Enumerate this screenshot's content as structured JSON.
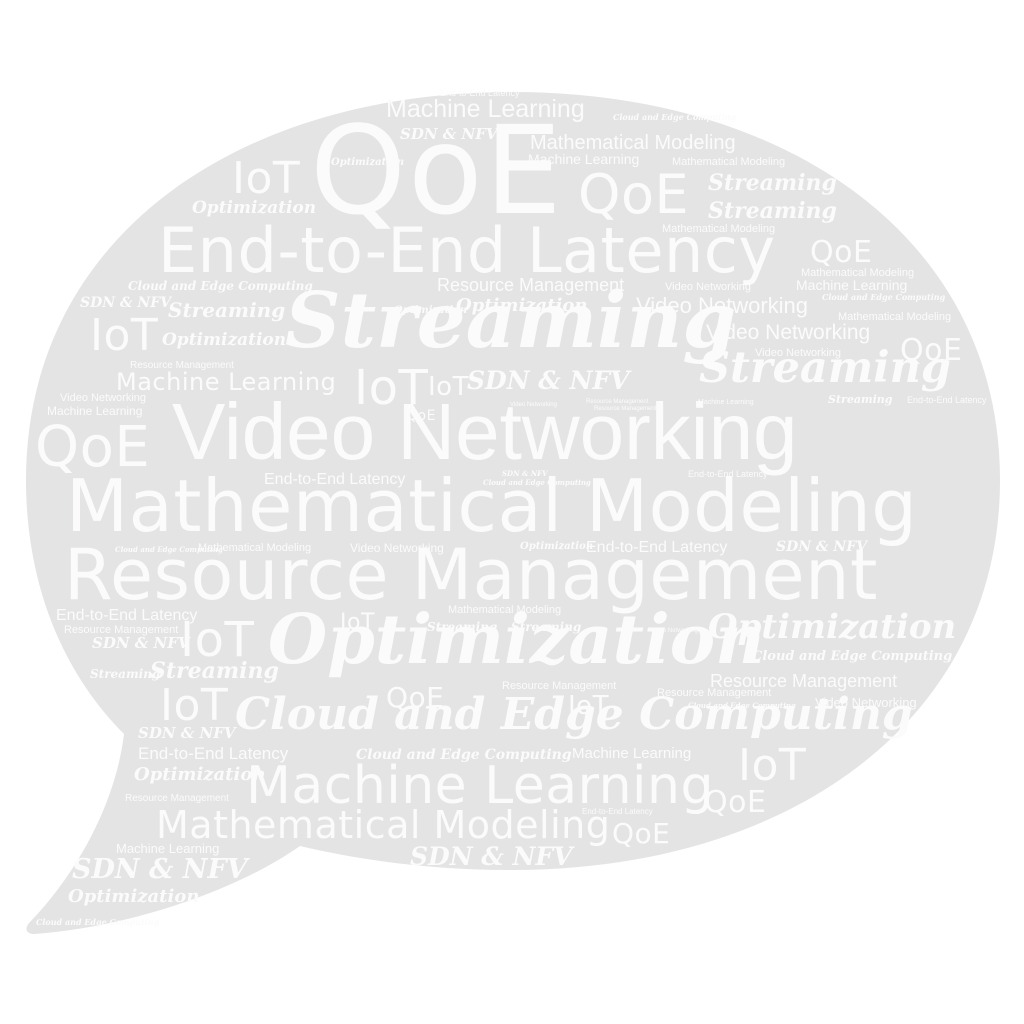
{
  "colors": {
    "bubble": "#e4e4e4",
    "word": "#fcfbfb",
    "background": "#ffffff"
  },
  "words": {
    "qoe_big": "QoE",
    "end_to_end_latency_big": "End-to-End Latency",
    "streaming_big": "Streaming",
    "video_networking_big": "Video Networking",
    "mathematical_modeling_big": "Mathematical Modeling",
    "resource_management_big": "Resource Management",
    "optimization_big": "Optimization",
    "cloud_edge_big": "Cloud and Edge Computing",
    "machine_learning_big": "Machine Learning",
    "mathematical_modeling_mid": "Mathematical Modeling",
    "sdn_nfv_mid": "SDN & NFV",
    "machine_learning_top": "Machine Learning",
    "end_to_end_latency_tiny_top": "End-to-End Latency",
    "cloud_edge_tiny_top": "Cloud and Edge Computing",
    "sdn_nfv_top": "SDN & NFV",
    "mathematical_modeling_top": "Mathematical Modeling",
    "machine_learning_top2": "Machine Learning",
    "mathematical_modeling_top3": "Mathematical Modeling",
    "iot_top": "IoT",
    "optimization_tiny_top": "Optimization",
    "qoe_top_mid": "QoE",
    "streaming_top1": "Streaming",
    "streaming_top2": "Streaming",
    "optimization_top_left": "Optimization",
    "mathematical_modeling_top4": "Mathematical Modeling",
    "qoe_right1": "QoE",
    "mathematical_modeling_right1": "Mathematical Modeling",
    "cloud_edge_left1": "Cloud and Edge Computing",
    "resource_management_mid1": "Resource Management",
    "video_networking_small1": "Video Networking",
    "machine_learning_right1": "Machine Learning",
    "cloud_edge_right_tiny1": "Cloud and Edge Computing",
    "sdn_nfv_left1": "SDN & NFV",
    "streaming_left1": "Streaming",
    "optimization_tiny_mid": "Optimization",
    "optimization_mid1": "Optimization",
    "video_networking_mid1": "Video Networking",
    "mathematical_modeling_right2": "Mathematical Modeling",
    "iot_left1": "IoT",
    "optimization_left2": "Optimization",
    "video_networking_mid2": "Video Networking",
    "qoe_right2": "QoE",
    "resource_management_tiny1": "Resource Management",
    "video_networking_tiny1": "Video Networking",
    "machine_learning_left1": "Machine Learning",
    "iot_mid1": "IoT",
    "iot_mid2": "IoT",
    "sdn_nfv_mid2": "SDN & NFV",
    "streaming_right1": "Streaming",
    "video_networking_left2": "Video Networking",
    "machine_learning_left2": "Machine Learning",
    "qoe_small1": "QoE",
    "video_networking_micro1": "Video Networking",
    "resource_management_micro1": "Resource Management",
    "resource_management_micro2": "Resource Management",
    "machine_learning_micro1": "Machine Learning",
    "streaming_micro1": "Streaming",
    "end_to_end_latency_micro1": "End-to-End Latency",
    "qoe_left_big": "QoE",
    "end_to_end_latency_small1": "End-to-End Latency",
    "sdn_nfv_micro1": "SDN & NFV",
    "cloud_edge_micro1": "Cloud and Edge Computing",
    "end_to_end_latency_micro2": "End-to-End Latency",
    "cloud_edge_micro2": "Cloud and Edge Computing",
    "mathematical_modeling_small2": "Mathematical Modeling",
    "video_networking_small3": "Video Networking",
    "optimization_micro2": "Optimization",
    "end_to_end_latency_small2": "End-to-End Latency",
    "sdn_nfv_small3": "SDN & NFV",
    "end_to_end_latency_small3": "End-to-End Latency",
    "resource_management_small2": "Resource Management",
    "sdn_nfv_small4": "SDN & NFV",
    "iot_mid3": "IoT",
    "streaming_small2": "Streaming",
    "streaming_small3": "Streaming",
    "mathematical_modeling_small3": "Mathematical Modeling",
    "video_networking_micro2": "Video Networking",
    "optimization_right2": "Optimization",
    "cloud_edge_right2": "Cloud and Edge Computing",
    "iot_left2": "IoT",
    "streaming_small4": "Streaming",
    "streaming_left3": "Streaming",
    "resource_management_right2": "Resource Management",
    "iot_left3": "IoT",
    "qoe_mid3": "QoE",
    "resource_management_small3": "Resource Management",
    "resource_management_small4": "Resource Management",
    "iot_mid4": "IoT",
    "cloud_edge_micro3": "Cloud and Edge Computing",
    "video_networking_small4": "Video Networking",
    "sdn_nfv_small5": "SDN & NFV",
    "end_to_end_latency_small4": "End-to-End Latency",
    "cloud_edge_small3": "Cloud and Edge Computing",
    "machine_learning_small3": "Machine Learning",
    "iot_right2": "IoT",
    "optimization_small3": "Optimization",
    "resource_management_micro3": "Resource Management",
    "qoe_right3": "QoE",
    "end_to_end_latency_micro3": "End-to-End Latency",
    "qoe_bottom1": "QoE",
    "machine_learning_small4": "Machine Learning",
    "sdn_nfv_bottom1": "SDN & NFV",
    "sdn_nfv_tail1": "SDN & NFV",
    "optimization_tail1": "Optimization",
    "cloud_edge_tail1": "Cloud and Edge Computing",
    "resource_management_micro4": "Resource Management",
    "optimization_micro3": "Optimization"
  }
}
